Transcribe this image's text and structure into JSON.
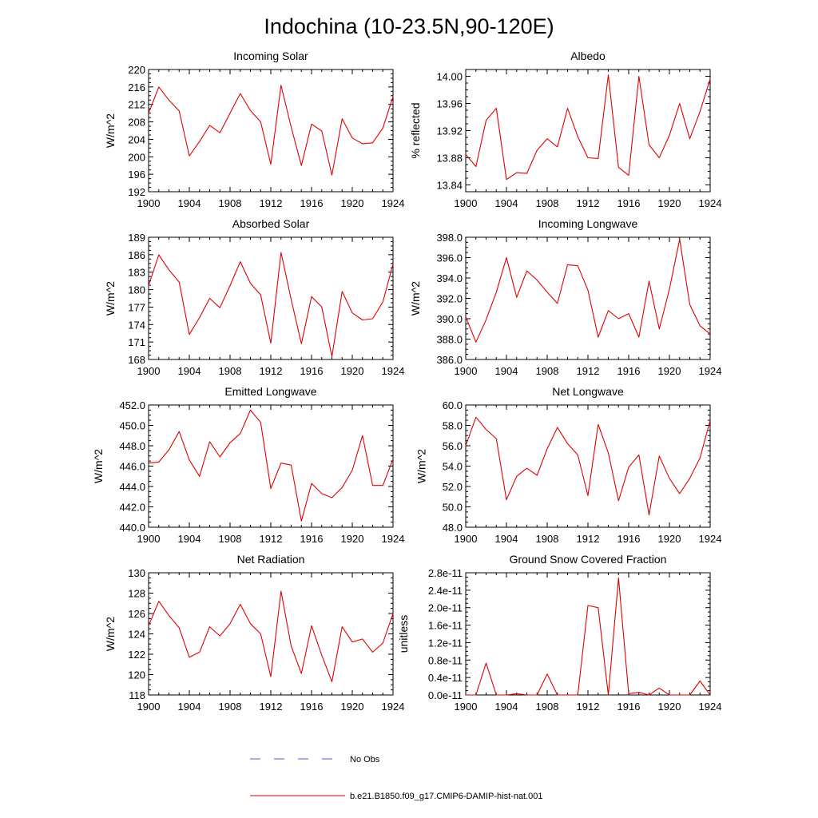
{
  "title": "Indochina (10-23.5N,90-120E)",
  "legend": [
    {
      "label": "No Obs",
      "color": "#5555cc",
      "dash": true
    },
    {
      "label": "b.e21.B1850.f09_g17.CMIP6-DAMIP-hist-nat.001",
      "color": "#e00000",
      "dash": false
    }
  ],
  "chart_data": [
    {
      "type": "line",
      "title": "Incoming Solar",
      "ylabel": "W/m^2",
      "xlim": [
        1900,
        1924
      ],
      "ylim": [
        192,
        220
      ],
      "xticks": [
        1900,
        1904,
        1908,
        1912,
        1916,
        1920,
        1924
      ],
      "yticks": [
        "192",
        "196",
        "200",
        "204",
        "208",
        "212",
        "216",
        "220"
      ],
      "x": [
        1900,
        1901,
        1902,
        1903,
        1904,
        1905,
        1906,
        1907,
        1908,
        1909,
        1910,
        1911,
        1912,
        1913,
        1914,
        1915,
        1916,
        1917,
        1918,
        1919,
        1920,
        1921,
        1922,
        1923,
        1924
      ],
      "series": [
        {
          "values": [
            210,
            216,
            213,
            210.5,
            200.2,
            203.5,
            207.2,
            205.5,
            210,
            214.5,
            210.6,
            208,
            198.3,
            216.4,
            206.8,
            198,
            207.5,
            205.9,
            195.8,
            208.7,
            204.3,
            203,
            203.2,
            206.6,
            213.8
          ]
        }
      ]
    },
    {
      "type": "line",
      "title": "Albedo",
      "ylabel": "% reflected",
      "xlim": [
        1900,
        1924
      ],
      "ylim": [
        13.83,
        14.01
      ],
      "xticks": [
        1900,
        1904,
        1908,
        1912,
        1916,
        1920,
        1924
      ],
      "yticks": [
        "13.84",
        "13.88",
        "13.92",
        "13.96",
        "14.00"
      ],
      "x": [
        1900,
        1901,
        1902,
        1903,
        1904,
        1905,
        1906,
        1907,
        1908,
        1909,
        1910,
        1911,
        1912,
        1913,
        1914,
        1915,
        1916,
        1917,
        1918,
        1919,
        1920,
        1921,
        1922,
        1923,
        1924
      ],
      "series": [
        {
          "values": [
            13.885,
            13.867,
            13.935,
            13.953,
            13.848,
            13.858,
            13.857,
            13.891,
            13.908,
            13.896,
            13.953,
            13.911,
            13.88,
            13.879,
            14.002,
            13.866,
            13.854,
            14,
            13.899,
            13.88,
            13.913,
            13.96,
            13.908,
            13.948,
            13.996
          ]
        }
      ]
    },
    {
      "type": "line",
      "title": "Absorbed Solar",
      "ylabel": "W/m^2",
      "xlim": [
        1900,
        1924
      ],
      "ylim": [
        168,
        189
      ],
      "xticks": [
        1900,
        1904,
        1908,
        1912,
        1916,
        1920,
        1924
      ],
      "yticks": [
        "168",
        "171",
        "174",
        "177",
        "180",
        "183",
        "186",
        "189"
      ],
      "x": [
        1900,
        1901,
        1902,
        1903,
        1904,
        1905,
        1906,
        1907,
        1908,
        1909,
        1910,
        1911,
        1912,
        1913,
        1914,
        1915,
        1916,
        1917,
        1918,
        1919,
        1920,
        1921,
        1922,
        1923,
        1924
      ],
      "series": [
        {
          "values": [
            180.7,
            186,
            183.4,
            181.3,
            172.3,
            175.2,
            178.5,
            176.9,
            180.7,
            184.8,
            181.1,
            179.1,
            170.8,
            186.4,
            178.3,
            170.7,
            178.8,
            177,
            168.5,
            179.7,
            176,
            174.8,
            175,
            177.9,
            184.4
          ]
        }
      ]
    },
    {
      "type": "line",
      "title": "Incoming Longwave",
      "ylabel": "W/m^2",
      "xlim": [
        1900,
        1924
      ],
      "ylim": [
        386,
        398
      ],
      "xticks": [
        1900,
        1904,
        1908,
        1912,
        1916,
        1920,
        1924
      ],
      "yticks": [
        "386.0",
        "388.0",
        "390.0",
        "392.0",
        "394.0",
        "396.0",
        "398.0"
      ],
      "x": [
        1900,
        1901,
        1902,
        1903,
        1904,
        1905,
        1906,
        1907,
        1908,
        1909,
        1910,
        1911,
        1912,
        1913,
        1914,
        1915,
        1916,
        1917,
        1918,
        1919,
        1920,
        1921,
        1922,
        1923,
        1924
      ],
      "series": [
        {
          "values": [
            390.2,
            387.7,
            389.9,
            392.6,
            396,
            392.1,
            394.7,
            393.8,
            392.6,
            391.5,
            395.3,
            395.2,
            392.8,
            388.2,
            390.8,
            390,
            390.5,
            388.2,
            393.7,
            389,
            392.9,
            397.8,
            391.4,
            389.3,
            388.5
          ]
        }
      ]
    },
    {
      "type": "line",
      "title": "Emitted Longwave",
      "ylabel": "W/m^2",
      "xlim": [
        1900,
        1924
      ],
      "ylim": [
        440,
        452
      ],
      "xticks": [
        1900,
        1904,
        1908,
        1912,
        1916,
        1920,
        1924
      ],
      "yticks": [
        "440.0",
        "442.0",
        "444.0",
        "446.0",
        "448.0",
        "450.0",
        "452.0"
      ],
      "x": [
        1900,
        1901,
        1902,
        1903,
        1904,
        1905,
        1906,
        1907,
        1908,
        1909,
        1910,
        1911,
        1912,
        1913,
        1914,
        1915,
        1916,
        1917,
        1918,
        1919,
        1920,
        1921,
        1922,
        1923,
        1924
      ],
      "series": [
        {
          "values": [
            446.3,
            446.4,
            447.6,
            449.4,
            446.6,
            445,
            448.4,
            446.9,
            448.3,
            449.2,
            451.5,
            450.3,
            443.8,
            446.3,
            446.1,
            440.6,
            444.3,
            443.3,
            442.9,
            443.9,
            445.6,
            449,
            444.1,
            444.1,
            446.7
          ]
        }
      ]
    },
    {
      "type": "line",
      "title": "Net Longwave",
      "ylabel": "W/m^2",
      "xlim": [
        1900,
        1924
      ],
      "ylim": [
        48,
        60
      ],
      "xticks": [
        1900,
        1904,
        1908,
        1912,
        1916,
        1920,
        1924
      ],
      "yticks": [
        "48.0",
        "50.0",
        "52.0",
        "54.0",
        "56.0",
        "58.0",
        "60.0"
      ],
      "x": [
        1900,
        1901,
        1902,
        1903,
        1904,
        1905,
        1906,
        1907,
        1908,
        1909,
        1910,
        1911,
        1912,
        1913,
        1914,
        1915,
        1916,
        1917,
        1918,
        1919,
        1920,
        1921,
        1922,
        1923,
        1924
      ],
      "series": [
        {
          "values": [
            56,
            58.8,
            57.6,
            56.7,
            50.7,
            53,
            53.8,
            53.1,
            55.7,
            57.8,
            56.2,
            55.1,
            51.1,
            58.1,
            55.3,
            50.6,
            53.9,
            55.1,
            49.2,
            55,
            52.8,
            51.3,
            52.8,
            54.8,
            58.5
          ]
        }
      ]
    },
    {
      "type": "line",
      "title": "Net Radiation",
      "ylabel": "W/m^2",
      "xlim": [
        1900,
        1924
      ],
      "ylim": [
        118,
        130
      ],
      "xticks": [
        1900,
        1904,
        1908,
        1912,
        1916,
        1920,
        1924
      ],
      "yticks": [
        "118",
        "120",
        "122",
        "124",
        "126",
        "128",
        "130"
      ],
      "x": [
        1900,
        1901,
        1902,
        1903,
        1904,
        1905,
        1906,
        1907,
        1908,
        1909,
        1910,
        1911,
        1912,
        1913,
        1914,
        1915,
        1916,
        1917,
        1918,
        1919,
        1920,
        1921,
        1922,
        1923,
        1924
      ],
      "series": [
        {
          "values": [
            124.8,
            127.2,
            125.8,
            124.6,
            121.7,
            122.2,
            124.7,
            123.8,
            125,
            126.9,
            125,
            124,
            119.8,
            128.2,
            122.8,
            120.1,
            124.8,
            121.9,
            119.3,
            124.7,
            123.2,
            123.5,
            122.2,
            123.1,
            126
          ]
        }
      ]
    },
    {
      "type": "line",
      "title": "Ground Snow Covered Fraction",
      "ylabel": "unitless",
      "xlim": [
        1900,
        1924
      ],
      "ylim": [
        0,
        2.8e-11
      ],
      "xticks": [
        1900,
        1904,
        1908,
        1912,
        1916,
        1920,
        1924
      ],
      "yticks": [
        "0.0e-11",
        "0.4e-11",
        "0.8e-11",
        "1.2e-11",
        "1.6e-11",
        "2.0e-11",
        "2.4e-11",
        "2.8e-11"
      ],
      "x": [
        1900,
        1901,
        1902,
        1903,
        1904,
        1905,
        1906,
        1907,
        1908,
        1909,
        1910,
        1911,
        1912,
        1913,
        1914,
        1915,
        1916,
        1917,
        1918,
        1919,
        1920,
        1921,
        1922,
        1923,
        1924
      ],
      "series": [
        {
          "values": [
            0,
            0,
            7.3e-12,
            0,
            0,
            3e-13,
            0,
            0,
            4.8e-12,
            0,
            0,
            0,
            2.05e-11,
            2e-11,
            0,
            2.68e-11,
            3e-13,
            6e-13,
            0,
            1.6e-12,
            0,
            0,
            0,
            3.2e-12,
            0
          ]
        }
      ]
    }
  ]
}
